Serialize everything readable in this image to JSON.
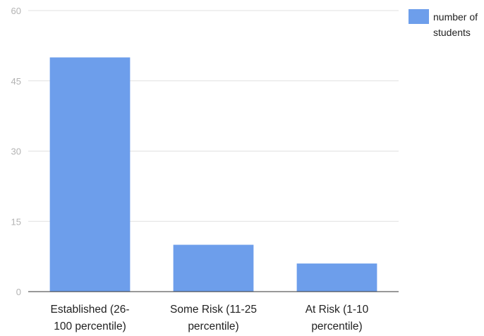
{
  "chart_data": {
    "type": "bar",
    "categories": [
      [
        "Established (26-",
        "100 percentile)"
      ],
      [
        "Some Risk (11-25",
        "percentile)"
      ],
      [
        "At Risk (1-10",
        "percentile)"
      ]
    ],
    "series": [
      {
        "name": "number of students",
        "values": [
          50,
          10,
          6
        ],
        "color": "#6d9eeb"
      }
    ],
    "ylim": [
      0,
      60
    ],
    "yticks": [
      0,
      15,
      30,
      45,
      60
    ],
    "grid": true,
    "legend": {
      "position": "top-right",
      "lines": [
        "number of",
        "students"
      ]
    },
    "title": "",
    "xlabel": "",
    "ylabel": ""
  }
}
